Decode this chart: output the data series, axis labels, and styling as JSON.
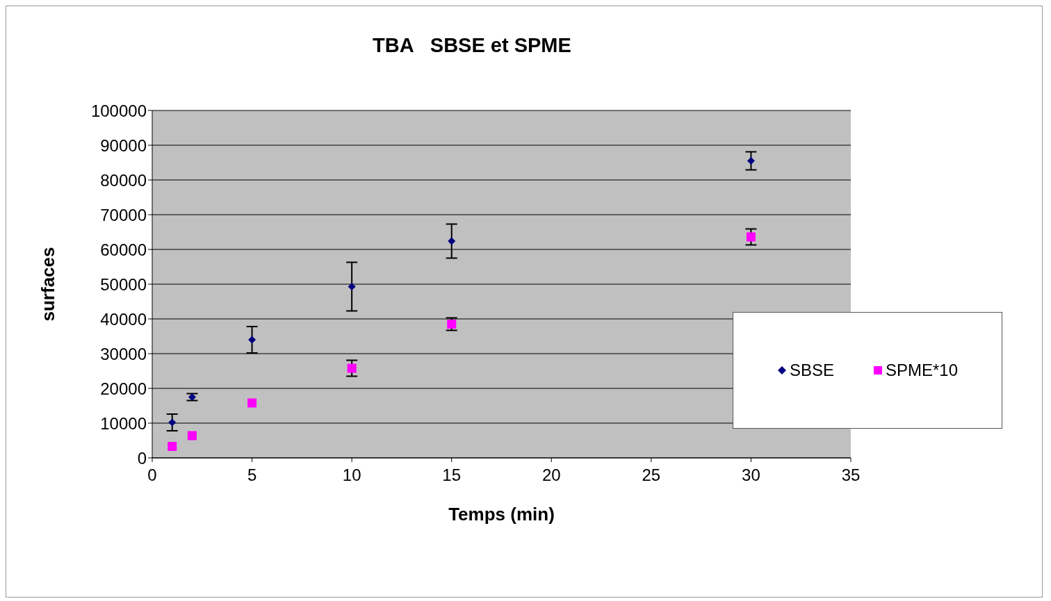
{
  "chart_data": {
    "type": "scatter",
    "title": "TBA   SBSE et SPME",
    "xlabel": "Temps (min)",
    "ylabel": "surfaces",
    "series": [
      {
        "name": "SBSE",
        "color": "#000080",
        "marker": "diamond",
        "x": [
          1,
          2,
          5,
          10,
          15,
          30
        ],
        "values": [
          10200,
          17500,
          34000,
          49300,
          62400,
          85500
        ],
        "errors": [
          2400,
          1000,
          3800,
          7000,
          4900,
          2600
        ]
      },
      {
        "name": "SPME*10",
        "color": "#ff00ff",
        "marker": "square",
        "x": [
          1,
          2,
          5,
          10,
          15,
          30
        ],
        "values": [
          3300,
          6400,
          15800,
          25800,
          38500,
          63600
        ],
        "errors": [
          null,
          null,
          null,
          2300,
          1800,
          2300
        ]
      }
    ],
    "xlim": [
      0,
      35
    ],
    "xticks": [
      0,
      5,
      10,
      15,
      20,
      25,
      30,
      35
    ],
    "ylim": [
      0,
      100000
    ],
    "yticks": [
      0,
      10000,
      20000,
      30000,
      40000,
      50000,
      60000,
      70000,
      80000,
      90000,
      100000
    ],
    "grid": "y",
    "legend": "right"
  }
}
